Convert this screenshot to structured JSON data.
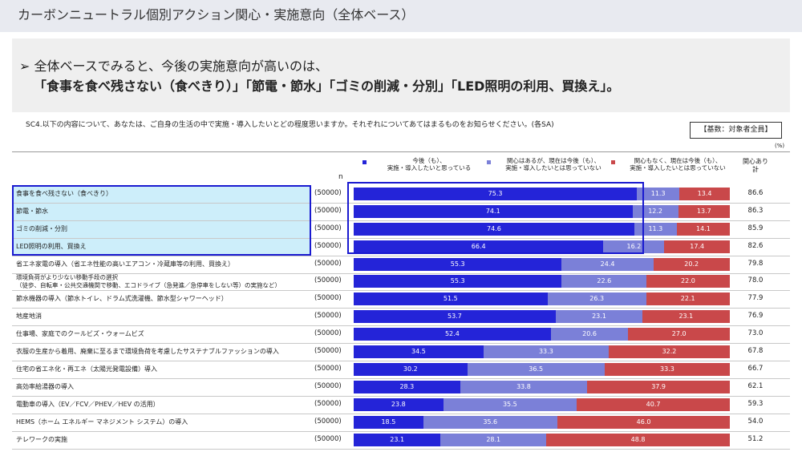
{
  "chart_data": {
    "type": "bar",
    "title": "カーボンニュートラル個別アクション関心・実施意向（全体ベース）",
    "summary": [
      "➢ 全体ベースでみると、今後の実施意向が高いのは、",
      "「食事を食べ残さない（食べきり）」「節電・節水」「ゴミの削減・分別」「LED照明の利用、買換え」。"
    ],
    "question": "SC4.以下の内容について、あなたは、ご自身の生活の中で実施・導入したいとどの程度思いますか。それぞれについてあてはまるものをお知らせください。(各SA)",
    "base_note": "【基数：対象者全員】",
    "unit": "(%)",
    "n_header": "n",
    "total_header": "関心あり\n計",
    "categories": [
      "食事を食べ残さない（食べきり）",
      "節電・節水",
      "ゴミの削減・分別",
      "LED照明の利用、買換え",
      "省エネ家電の導入（省エネ性能の高いエアコン・冷蔵庫等の利用、買換え）",
      "環境負荷がより少ない移動手段の選択\n（徒歩、自転車・公共交通機関で移動、エコドライブ（急発進／急停車をしない等）の実施など）",
      "節水機器の導入（節水トイレ、ドラム式洗濯機、節水型シャワーヘッド）",
      "地産地消",
      "仕事場、家庭でのクールビズ・ウォームビズ",
      "衣服の生産から着用、廃棄に至るまで環境負荷を考慮したサステナブルファッションの導入",
      "住宅の省エネ化・再エネ（太陽光発電設備）導入",
      "高効率給湯器の導入",
      "電動車の導入（EV／FCV／PHEV／HEV の活用）",
      "HEMS（ホーム エネルギー マネジメント システム）の導入",
      "テレワークの実施"
    ],
    "n_labels": [
      "(50000)",
      "(50000)",
      "(50000)",
      "(50000)",
      "(50000)",
      "(50000)",
      "(50000)",
      "(50000)",
      "(50000)",
      "(50000)",
      "(50000)",
      "(50000)",
      "(50000)",
      "(50000)",
      "(50000)"
    ],
    "xlim": [
      0,
      100
    ],
    "highlight_rows": 4,
    "series": [
      {
        "name": "今後（も）、\n実施・導入したいと思っている",
        "color": "#2424d8",
        "values": [
          75.3,
          74.1,
          74.6,
          66.4,
          55.3,
          55.3,
          51.5,
          53.7,
          52.4,
          34.5,
          30.2,
          28.3,
          23.8,
          18.5,
          23.1
        ]
      },
      {
        "name": "関心はあるが、現在は今後（も）、\n実施・導入したいとは思っていない",
        "color": "#7b80d8",
        "values": [
          11.3,
          12.2,
          11.3,
          16.2,
          24.4,
          22.6,
          26.3,
          23.1,
          20.6,
          33.3,
          36.5,
          33.8,
          35.5,
          35.6,
          28.1
        ]
      },
      {
        "name": "関心もなく、現在は今後（も）、\n実施・導入したいとは思っていない",
        "color": "#c9484a",
        "values": [
          13.4,
          13.7,
          14.1,
          17.4,
          20.2,
          22.0,
          22.1,
          23.1,
          27.0,
          32.2,
          33.3,
          37.9,
          40.7,
          46.0,
          48.8
        ],
        "value_labels": [
          "13.4",
          "13.7",
          "14.1",
          "17.4",
          "20.2",
          "22.0",
          "22.1",
          "23.1",
          "27.0",
          "32.2",
          "33.3",
          "37.9",
          "40.7",
          "46.0",
          "48.8"
        ]
      }
    ],
    "totals": [
      86.6,
      86.3,
      85.9,
      82.6,
      79.8,
      78.0,
      77.9,
      76.9,
      73.0,
      67.8,
      66.7,
      62.1,
      59.3,
      54.0,
      51.2
    ],
    "total_labels": [
      "86.6",
      "86.3",
      "85.9",
      "82.6",
      "79.8",
      "78.0",
      "77.9",
      "76.9",
      "73.0",
      "67.8",
      "66.7",
      "62.1",
      "59.3",
      "54.0",
      "51.2"
    ]
  }
}
